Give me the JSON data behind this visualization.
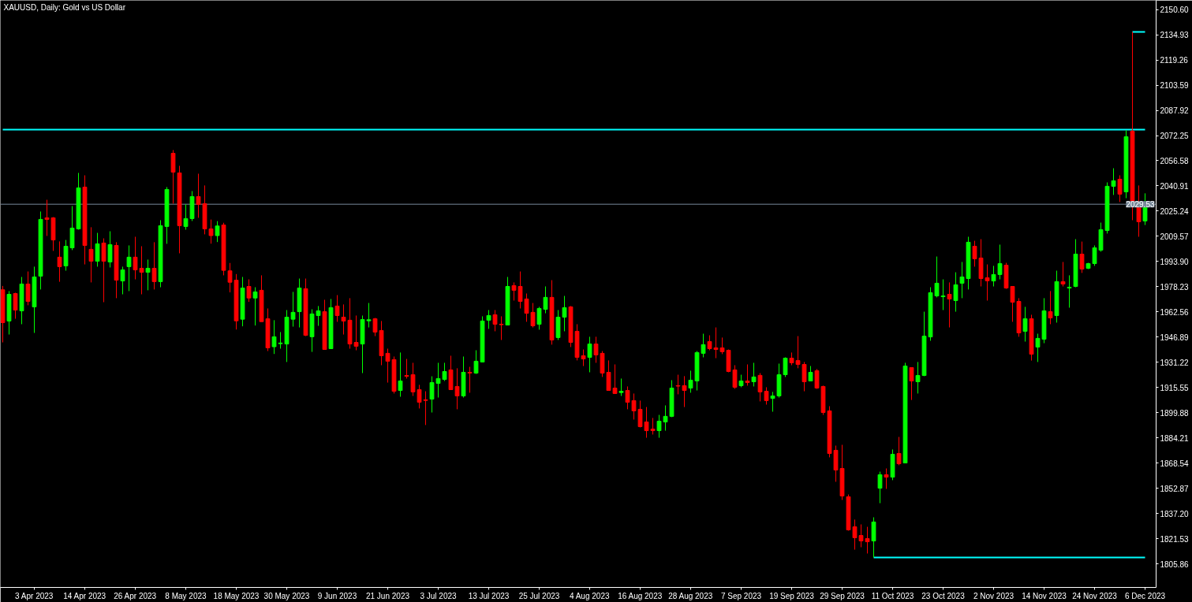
{
  "chart_data": {
    "type": "candlestick",
    "title": "XAUUSD, Daily:  Gold vs US Dollar",
    "categories": [
      null,
      null,
      null,
      null,
      null,
      "3 Apr 2023",
      null,
      null,
      null,
      null,
      null,
      null,
      null,
      "14 Apr 2023",
      null,
      null,
      null,
      null,
      null,
      null,
      null,
      "26 Apr 2023",
      null,
      null,
      null,
      null,
      null,
      null,
      null,
      "8 May 2023",
      null,
      null,
      null,
      null,
      null,
      null,
      null,
      "18 May 2023",
      null,
      null,
      null,
      null,
      null,
      null,
      null,
      "30 May 2023",
      null,
      null,
      null,
      null,
      null,
      null,
      null,
      "9 Jun 2023",
      null,
      null,
      null,
      null,
      null,
      null,
      null,
      "21 Jun 2023",
      null,
      null,
      null,
      null,
      null,
      null,
      null,
      "3 Jul 2023",
      null,
      null,
      null,
      null,
      null,
      null,
      null,
      "13 Jul 2023",
      null,
      null,
      null,
      null,
      null,
      null,
      null,
      "25 Jul 2023",
      null,
      null,
      null,
      null,
      null,
      null,
      null,
      "4 Aug 2023",
      null,
      null,
      null,
      null,
      null,
      null,
      null,
      "16 Aug 2023",
      null,
      null,
      null,
      null,
      null,
      null,
      null,
      "28 Aug 2023",
      null,
      null,
      null,
      null,
      null,
      null,
      null,
      "7 Sep 2023",
      null,
      null,
      null,
      null,
      null,
      null,
      null,
      "19 Sep 2023",
      null,
      null,
      null,
      null,
      null,
      null,
      null,
      "29 Sep 2023",
      null,
      null,
      null,
      null,
      null,
      null,
      null,
      "11 Oct 2023",
      null,
      null,
      null,
      null,
      null,
      null,
      null,
      "23 Oct 2023",
      null,
      null,
      null,
      null,
      null,
      null,
      null,
      "2 Nov 2023",
      null,
      null,
      null,
      null,
      null,
      null,
      null,
      "14 Nov 2023",
      null,
      null,
      null,
      null,
      null,
      null,
      null,
      "24 Nov 2023",
      null,
      null,
      null,
      null,
      null,
      null,
      null,
      "6 Dec 2023"
    ],
    "ohlc": [
      [
        1976.3,
        1978.7,
        1943.6,
        1955.9
      ],
      [
        1956.9,
        1975.5,
        1948.5,
        1973.5
      ],
      [
        1974.0,
        1974.5,
        1958.3,
        1963.7
      ],
      [
        1963.2,
        1984.3,
        1954.9,
        1979.9
      ],
      [
        1979.9,
        1987.7,
        1966.7,
        1969.1
      ],
      [
        1965.7,
        1990.7,
        1949.5,
        1984.3
      ],
      [
        1984.8,
        2025.0,
        1976.5,
        2020.1
      ],
      [
        2021.1,
        2032.3,
        2009.8,
        2020.1
      ],
      [
        2021.1,
        2021.5,
        2000.5,
        2007.3
      ],
      [
        1996.6,
        2006.4,
        1981.3,
        1990.7
      ],
      [
        1991.2,
        2007.3,
        1988.2,
        2003.4
      ],
      [
        2002.4,
        2028.4,
        2001.0,
        2014.7
      ],
      [
        2014.2,
        2049.0,
        2013.7,
        2039.7
      ],
      [
        2040.2,
        2047.5,
        1992.1,
        2003.9
      ],
      [
        2001.5,
        2015.2,
        1980.9,
        1994.1
      ],
      [
        1994.1,
        2011.7,
        1990.7,
        2004.9
      ],
      [
        2005.4,
        2008.3,
        1968.6,
        1994.1
      ],
      [
        1993.6,
        2012.7,
        1990.2,
        2004.4
      ],
      [
        2003.9,
        2005.9,
        1971.1,
        1982.3
      ],
      [
        1981.8,
        1990.7,
        1973.5,
        1988.7
      ],
      [
        1990.7,
        2003.9,
        1975.5,
        1996.6
      ],
      [
        1996.6,
        2009.3,
        1982.8,
        1988.7
      ],
      [
        1989.7,
        2003.4,
        1973.5,
        1987.2
      ],
      [
        1987.2,
        1995.1,
        1976.0,
        1989.7
      ],
      [
        1989.7,
        2005.9,
        1976.5,
        1981.4
      ],
      [
        1981.4,
        2019.6,
        1977.9,
        2016.2
      ],
      [
        2015.7,
        2040.2,
        2004.9,
        2038.7
      ],
      [
        2061.2,
        2063.2,
        2029.9,
        2049.5
      ],
      [
        2049.0,
        2053.4,
        1999.0,
        2016.2
      ],
      [
        2015.7,
        2029.4,
        2013.7,
        2020.6
      ],
      [
        2020.6,
        2037.7,
        2019.1,
        2034.3
      ],
      [
        2034.3,
        2048.5,
        2021.1,
        2029.4
      ],
      [
        2029.9,
        2041.2,
        2010.8,
        2014.2
      ],
      [
        2014.2,
        2020.0,
        2005.0,
        2010.0
      ],
      [
        2010.0,
        2019.0,
        2006.0,
        2016.0
      ],
      [
        2016.6,
        2018.0,
        1985.3,
        1988.4
      ],
      [
        1988.1,
        1993.0,
        1974.7,
        1981.0
      ],
      [
        1982.3,
        1986.1,
        1951.6,
        1957.0
      ],
      [
        1958.0,
        1984.3,
        1953.6,
        1977.4
      ],
      [
        1978.4,
        1982.8,
        1968.8,
        1971.2
      ],
      [
        1971.2,
        1977.9,
        1954.1,
        1975.0
      ],
      [
        1976.0,
        1985.3,
        1956.5,
        1956.5
      ],
      [
        1958.3,
        1964.7,
        1938.2,
        1940.2
      ],
      [
        1940.9,
        1957.4,
        1936.4,
        1947.1
      ],
      [
        1942.8,
        1950.0,
        1939.7,
        1943.2
      ],
      [
        1942.6,
        1963.7,
        1931.4,
        1959.3
      ],
      [
        1958.0,
        1975.0,
        1953.4,
        1962.3
      ],
      [
        1962.7,
        1983.3,
        1952.9,
        1977.4
      ],
      [
        1977.0,
        1983.3,
        1947.5,
        1948.0
      ],
      [
        1947.1,
        1964.2,
        1937.7,
        1961.3
      ],
      [
        1960.3,
        1966.2,
        1953.9,
        1963.2
      ],
      [
        1962.7,
        1970.1,
        1939.2,
        1939.2
      ],
      [
        1939.7,
        1970.6,
        1939.7,
        1965.2
      ],
      [
        1966.2,
        1973.0,
        1956.4,
        1960.3
      ],
      [
        1959.3,
        1967.2,
        1948.5,
        1956.9
      ],
      [
        1957.4,
        1971.1,
        1939.7,
        1942.6
      ],
      [
        1943.6,
        1960.3,
        1938.7,
        1941.2
      ],
      [
        1942.6,
        1960.3,
        1924.5,
        1957.8
      ],
      [
        1957.0,
        1968.1,
        1952.9,
        1957.7
      ],
      [
        1958.3,
        1958.8,
        1947.5,
        1950.0
      ],
      [
        1951.0,
        1956.9,
        1929.4,
        1935.3
      ],
      [
        1936.8,
        1939.7,
        1918.6,
        1931.9
      ],
      [
        1932.9,
        1934.8,
        1911.8,
        1913.2
      ],
      [
        1913.7,
        1937.3,
        1909.8,
        1919.6
      ],
      [
        1923.0,
        1933.3,
        1921.1,
        1922.5
      ],
      [
        1923.5,
        1930.9,
        1910.3,
        1912.8
      ],
      [
        1914.2,
        1917.2,
        1902.5,
        1906.4
      ],
      [
        1907.9,
        1913.2,
        1892.2,
        1907.5
      ],
      [
        1908.3,
        1922.5,
        1900.0,
        1918.6
      ],
      [
        1918.1,
        1930.9,
        1909.3,
        1921.1
      ],
      [
        1920.6,
        1930.9,
        1919.6,
        1925.5
      ],
      [
        1926.5,
        1935.3,
        1914.2,
        1914.2
      ],
      [
        1916.2,
        1927.5,
        1902.0,
        1910.3
      ],
      [
        1910.3,
        1934.8,
        1909.3,
        1925.0
      ],
      [
        1925.0,
        1928.4,
        1912.3,
        1924.5
      ],
      [
        1924.5,
        1938.7,
        1924.0,
        1931.9
      ],
      [
        1931.4,
        1959.8,
        1931.4,
        1956.9
      ],
      [
        1957.4,
        1963.7,
        1952.0,
        1960.3
      ],
      [
        1960.8,
        1963.7,
        1950.5,
        1954.9
      ],
      [
        1954.9,
        1959.8,
        1945.1,
        1954.6
      ],
      [
        1954.4,
        1984.3,
        1954.4,
        1978.4
      ],
      [
        1978.9,
        1980.9,
        1969.6,
        1976.0
      ],
      [
        1978.4,
        1987.7,
        1964.7,
        1969.1
      ],
      [
        1970.6,
        1974.0,
        1956.4,
        1961.7
      ],
      [
        1962.3,
        1968.1,
        1952.9,
        1953.9
      ],
      [
        1954.9,
        1965.7,
        1951.5,
        1964.7
      ],
      [
        1964.2,
        1978.4,
        1961.7,
        1971.6
      ],
      [
        1971.6,
        1982.3,
        1942.2,
        1945.1
      ],
      [
        1946.6,
        1963.7,
        1945.1,
        1959.3
      ],
      [
        1959.3,
        1972.5,
        1950.5,
        1965.2
      ],
      [
        1965.7,
        1966.2,
        1940.7,
        1943.6
      ],
      [
        1950.5,
        1954.9,
        1932.4,
        1934.3
      ],
      [
        1935.3,
        1939.2,
        1928.9,
        1933.3
      ],
      [
        1934.3,
        1947.1,
        1925.0,
        1942.6
      ],
      [
        1942.6,
        1947.1,
        1930.9,
        1935.8
      ],
      [
        1936.8,
        1938.2,
        1922.1,
        1924.5
      ],
      [
        1925.0,
        1932.4,
        1913.7,
        1913.7
      ],
      [
        1915.2,
        1929.9,
        1911.8,
        1911.8
      ],
      [
        1912.4,
        1921.1,
        1910.3,
        1913.2
      ],
      [
        1913.7,
        1916.2,
        1902.0,
        1906.4
      ],
      [
        1907.4,
        1911.8,
        1895.6,
        1901.0
      ],
      [
        1902.0,
        1907.4,
        1890.7,
        1891.2
      ],
      [
        1894.1,
        1903.4,
        1884.3,
        1888.7
      ],
      [
        1889.7,
        1896.6,
        1886.3,
        1888.7
      ],
      [
        1888.7,
        1898.5,
        1884.3,
        1894.6
      ],
      [
        1894.1,
        1904.4,
        1888.7,
        1897.6
      ],
      [
        1897.6,
        1920.1,
        1897.1,
        1915.2
      ],
      [
        1916.7,
        1923.5,
        1911.3,
        1916.4
      ],
      [
        1916.7,
        1922.6,
        1903.4,
        1913.7
      ],
      [
        1915.2,
        1926.0,
        1912.3,
        1920.1
      ],
      [
        1919.6,
        1938.2,
        1913.7,
        1937.3
      ],
      [
        1936.8,
        1949.0,
        1934.3,
        1942.2
      ],
      [
        1944.1,
        1948.0,
        1938.7,
        1939.7
      ],
      [
        1940.2,
        1952.9,
        1933.8,
        1939.2
      ],
      [
        1940.2,
        1946.6,
        1936.3,
        1937.8
      ],
      [
        1938.7,
        1939.2,
        1925.0,
        1925.5
      ],
      [
        1926.5,
        1929.4,
        1914.7,
        1915.7
      ],
      [
        1916.7,
        1923.5,
        1915.7,
        1919.6
      ],
      [
        1919.6,
        1929.9,
        1916.7,
        1918.6
      ],
      [
        1919.1,
        1930.9,
        1916.2,
        1922.1
      ],
      [
        1923.1,
        1924.5,
        1906.9,
        1912.8
      ],
      [
        1913.2,
        1915.7,
        1904.9,
        1907.4
      ],
      [
        1908.8,
        1912.8,
        1900.5,
        1910.3
      ],
      [
        1910.3,
        1930.4,
        1909.3,
        1923.5
      ],
      [
        1923.5,
        1934.3,
        1922.1,
        1933.8
      ],
      [
        1933.8,
        1937.3,
        1929.4,
        1930.9
      ],
      [
        1932.3,
        1947.5,
        1927.5,
        1929.9
      ],
      [
        1929.9,
        1931.4,
        1913.2,
        1919.1
      ],
      [
        1919.6,
        1928.9,
        1919.6,
        1925.0
      ],
      [
        1926.0,
        1927.0,
        1914.7,
        1915.2
      ],
      [
        1916.2,
        1916.7,
        1898.5,
        1900.0
      ],
      [
        1901.0,
        1903.9,
        1872.1,
        1874.5
      ],
      [
        1876.5,
        1879.4,
        1856.9,
        1864.2
      ],
      [
        1865.2,
        1879.9,
        1845.6,
        1848.1
      ],
      [
        1847.6,
        1849.0,
        1826.5,
        1827.0
      ],
      [
        1828.9,
        1833.4,
        1814.7,
        1822.1
      ],
      [
        1823.5,
        1830.4,
        1816.2,
        1820.1
      ],
      [
        1821.6,
        1828.9,
        1812.3,
        1819.6
      ],
      [
        1820.1,
        1834.8,
        1809.8,
        1831.9
      ],
      [
        1852.9,
        1863.2,
        1843.6,
        1861.3
      ],
      [
        1861.3,
        1865.2,
        1852.5,
        1859.8
      ],
      [
        1859.8,
        1877.0,
        1857.9,
        1874.0
      ],
      [
        1874.5,
        1884.8,
        1867.2,
        1868.1
      ],
      [
        1868.6,
        1930.9,
        1868.6,
        1928.9
      ],
      [
        1927.9,
        1927.9,
        1907.8,
        1919.6
      ],
      [
        1919.1,
        1931.4,
        1911.8,
        1923.0
      ],
      [
        1923.0,
        1962.7,
        1922.6,
        1947.5
      ],
      [
        1947.0,
        1977.9,
        1944.6,
        1974.5
      ],
      [
        1972.5,
        1997.0,
        1971.6,
        1980.4
      ],
      [
        1972.0,
        1982.8,
        1963.7,
        1972.5
      ],
      [
        1973.5,
        1980.9,
        1952.9,
        1970.6
      ],
      [
        1969.6,
        1987.2,
        1962.7,
        1979.4
      ],
      [
        1980.4,
        1993.6,
        1971.1,
        1984.3
      ],
      [
        1983.3,
        2009.3,
        1976.5,
        2005.9
      ],
      [
        2003.4,
        2006.8,
        1990.7,
        1995.6
      ],
      [
        1996.1,
        2007.8,
        1978.4,
        1983.3
      ],
      [
        1983.8,
        1992.1,
        1969.6,
        1981.9
      ],
      [
        1981.8,
        1991.2,
        1978.4,
        1985.8
      ],
      [
        1985.8,
        2004.4,
        1982.8,
        1992.6
      ],
      [
        1991.6,
        1993.1,
        1976.9,
        1977.4
      ],
      [
        1978.4,
        1978.4,
        1956.4,
        1968.6
      ],
      [
        1969.1,
        1971.1,
        1947.1,
        1949.5
      ],
      [
        1950.5,
        1965.7,
        1944.1,
        1958.3
      ],
      [
        1958.3,
        1960.8,
        1932.3,
        1936.3
      ],
      [
        1940.7,
        1949.0,
        1931.4,
        1946.1
      ],
      [
        1945.6,
        1971.1,
        1943.1,
        1963.2
      ],
      [
        1962.7,
        1975.5,
        1954.9,
        1958.8
      ],
      [
        1960.3,
        1988.2,
        1955.9,
        1981.4
      ],
      [
        1981.4,
        1993.6,
        1978.4,
        1979.9
      ],
      [
        1977.4,
        1985.3,
        1965.2,
        1977.9
      ],
      [
        1978.4,
        2007.8,
        1977.9,
        1998.5
      ],
      [
        1998.5,
        2006.3,
        1986.8,
        1989.2
      ],
      [
        1989.7,
        1993.1,
        1989.2,
        1992.6
      ],
      [
        1992.6,
        2003.9,
        1991.2,
        2002.4
      ],
      [
        2001.0,
        2018.1,
        2000.0,
        2013.7
      ],
      [
        2013.2,
        2043.1,
        2011.3,
        2040.7
      ],
      [
        2040.7,
        2051.9,
        2035.3,
        2044.1
      ],
      [
        2045.1,
        2047.5,
        2030.9,
        2035.8
      ],
      [
        2037.2,
        2075.5,
        2033.3,
        2071.5
      ],
      [
        2074.9,
        2136.7,
        2019.6,
        2028.9
      ],
      [
        2029.9,
        2041.2,
        2009.3,
        2018.6
      ],
      [
        2019.1,
        2036.3,
        2016.6,
        2029.9
      ]
    ],
    "colors": [
      "#ff0000",
      "#00ff00",
      "#ff0000",
      "#00ff00",
      "#ff0000",
      "#00ff00",
      "#00ff00",
      "#ff0000",
      "#ff0000",
      "#ff0000",
      "#00ff00",
      "#00ff00",
      "#00ff00",
      "#ff0000",
      "#ff0000",
      "#00ff00",
      "#ff0000",
      "#00ff00",
      "#ff0000",
      "#00ff00",
      "#00ff00",
      "#ff0000",
      "#ff0000",
      "#00ff00",
      "#ff0000",
      "#00ff00",
      "#00ff00",
      "#ff0000",
      "#ff0000",
      "#00ff00",
      "#00ff00",
      "#ff0000",
      "#ff0000",
      "#ff0000",
      "#00ff00",
      "#ff0000",
      "#ff0000",
      "#ff0000",
      "#00ff00",
      "#ff0000",
      "#00ff00",
      "#ff0000",
      "#ff0000",
      "#00ff00",
      "#00ff00",
      "#00ff00",
      "#00ff00",
      "#00ff00",
      "#ff0000",
      "#00ff00",
      "#00ff00",
      "#ff0000",
      "#00ff00",
      "#ff0000",
      "#ff0000",
      "#ff0000",
      "#ff0000",
      "#00ff00",
      "#00ff00",
      "#ff0000",
      "#ff0000",
      "#ff0000",
      "#ff0000",
      "#00ff00",
      "#ff0000",
      "#ff0000",
      "#ff0000",
      "#ff0000",
      "#00ff00",
      "#00ff00",
      "#00ff00",
      "#ff0000",
      "#ff0000",
      "#00ff00",
      "#ff0000",
      "#00ff00",
      "#00ff00",
      "#00ff00",
      "#ff0000",
      "#ff0000",
      "#00ff00",
      "#ff0000",
      "#ff0000",
      "#ff0000",
      "#ff0000",
      "#00ff00",
      "#00ff00",
      "#ff0000",
      "#00ff00",
      "#00ff00",
      "#ff0000",
      "#ff0000",
      "#ff0000",
      "#00ff00",
      "#ff0000",
      "#ff0000",
      "#ff0000",
      "#ff0000",
      "#00ff00",
      "#ff0000",
      "#ff0000",
      "#ff0000",
      "#ff0000",
      "#ff0000",
      "#00ff00",
      "#00ff00",
      "#00ff00",
      "#ff0000",
      "#ff0000",
      "#00ff00",
      "#00ff00",
      "#00ff00",
      "#ff0000",
      "#ff0000",
      "#ff0000",
      "#ff0000",
      "#ff0000",
      "#00ff00",
      "#ff0000",
      "#00ff00",
      "#ff0000",
      "#ff0000",
      "#00ff00",
      "#00ff00",
      "#00ff00",
      "#ff0000",
      "#ff0000",
      "#ff0000",
      "#00ff00",
      "#ff0000",
      "#ff0000",
      "#ff0000",
      "#ff0000",
      "#ff0000",
      "#ff0000",
      "#ff0000",
      "#ff0000",
      "#ff0000",
      "#00ff00",
      "#00ff00",
      "#ff0000",
      "#00ff00",
      "#ff0000",
      "#00ff00",
      "#ff0000",
      "#00ff00",
      "#00ff00",
      "#00ff00",
      "#00ff00",
      "#00ff00",
      "#ff0000",
      "#00ff00",
      "#00ff00",
      "#00ff00",
      "#ff0000",
      "#ff0000",
      "#ff0000",
      "#00ff00",
      "#00ff00",
      "#ff0000",
      "#ff0000",
      "#ff0000",
      "#00ff00",
      "#ff0000",
      "#00ff00",
      "#00ff00",
      "#ff0000",
      "#00ff00",
      "#ff0000",
      "#00ff00",
      "#00ff00",
      "#ff0000",
      "#00ff00",
      "#00ff00",
      "#00ff00",
      "#00ff00",
      "#00ff00",
      "#ff0000",
      "#00ff00",
      "#ff0000",
      "#ff0000",
      "#00ff00"
    ],
    "series": [
      {
        "type": "line",
        "values": [
          2075.9,
          2075.9,
          2075.9,
          2075.9,
          2075.9,
          2075.9,
          2075.9,
          2075.9,
          2075.9,
          2075.9,
          2075.9,
          2075.9,
          2075.9,
          2075.9,
          2075.9,
          2075.9,
          2075.9,
          2075.9,
          2075.9,
          2075.9,
          2075.9,
          2075.9,
          2075.9,
          2075.9,
          2075.9,
          2075.9,
          2075.9,
          2075.9,
          2075.9,
          2075.9,
          2075.9,
          2075.9,
          2075.9,
          2075.9,
          2075.9,
          2075.9,
          2075.9,
          2075.9,
          2075.9,
          2075.9,
          2075.9,
          2075.9,
          2075.9,
          2075.9,
          2075.9,
          2075.9,
          2075.9,
          2075.9,
          2075.9,
          2075.9,
          2075.9,
          2075.9,
          2075.9,
          2075.9,
          2075.9,
          2075.9,
          2075.9,
          2075.9,
          2075.9,
          2075.9,
          2075.9,
          2075.9,
          2075.9,
          2075.9,
          2075.9,
          2075.9,
          2075.9,
          2075.9,
          2075.9,
          2075.9,
          2075.9,
          2075.9,
          2075.9,
          2075.9,
          2075.9,
          2075.9,
          2075.9,
          2075.9,
          2075.9,
          2075.9,
          2075.9,
          2075.9,
          2075.9,
          2075.9,
          2075.9,
          2075.9,
          2075.9,
          2075.9,
          2075.9,
          2075.9,
          2075.9,
          2075.9,
          2075.9,
          2075.9,
          2075.9,
          2075.9,
          2075.9,
          2075.9,
          2075.9,
          2075.9,
          2075.9,
          2075.9,
          2075.9,
          2075.9,
          2075.9,
          2075.9,
          2075.9,
          2075.9,
          2075.9,
          2075.9,
          2075.9,
          2075.9,
          2075.9,
          2075.9,
          2075.9,
          2075.9,
          2075.9,
          2075.9,
          2075.9,
          2075.9,
          2075.9,
          2075.9,
          2075.9,
          2075.9,
          2075.9,
          2075.9,
          2075.9,
          2075.9,
          2075.9,
          2075.9,
          2075.9,
          2075.9,
          2075.9,
          2075.9,
          2075.9,
          2075.9,
          2075.9,
          2075.9,
          2075.9,
          2075.9,
          2075.9,
          2075.9,
          2075.9,
          2075.9,
          2075.9,
          2075.9,
          2075.9,
          2075.9,
          2075.9,
          2075.9,
          2075.9,
          2075.9,
          2075.9,
          2075.9,
          2075.9,
          2075.9,
          2075.9,
          2075.9,
          2075.9,
          2075.9,
          2075.9,
          2075.9,
          2075.9,
          2075.9,
          2075.9,
          2075.9,
          2075.9,
          2075.9,
          2075.9,
          2075.9,
          2075.9,
          2075.9,
          2075.9,
          2075.9,
          2075.9,
          2075.9,
          2075.9,
          2075.9,
          2075.9,
          2075.9,
          2075.9,
          2075.9
        ],
        "color": "#00ffff"
      },
      {
        "type": "line",
        "values": [
          null,
          null,
          null,
          null,
          null,
          null,
          null,
          null,
          null,
          null,
          null,
          null,
          null,
          null,
          null,
          null,
          null,
          null,
          null,
          null,
          null,
          null,
          null,
          null,
          null,
          null,
          null,
          null,
          null,
          null,
          null,
          null,
          null,
          null,
          null,
          null,
          null,
          null,
          null,
          null,
          null,
          null,
          null,
          null,
          null,
          null,
          null,
          null,
          null,
          null,
          null,
          null,
          null,
          null,
          null,
          null,
          null,
          null,
          null,
          null,
          null,
          null,
          null,
          null,
          null,
          null,
          null,
          null,
          null,
          null,
          null,
          null,
          null,
          null,
          null,
          null,
          null,
          null,
          null,
          null,
          null,
          null,
          null,
          null,
          null,
          null,
          null,
          null,
          null,
          null,
          null,
          null,
          null,
          null,
          null,
          null,
          null,
          null,
          null,
          null,
          null,
          null,
          null,
          null,
          null,
          null,
          null,
          null,
          null,
          null,
          null,
          null,
          null,
          null,
          null,
          null,
          null,
          null,
          null,
          null,
          null,
          null,
          null,
          null,
          null,
          null,
          null,
          null,
          null,
          null,
          null,
          null,
          null,
          null,
          null,
          null,
          null,
          null,
          1809.8,
          1809.8,
          1809.8,
          1809.8,
          1809.8,
          1809.8,
          1809.8,
          1809.8,
          1809.8,
          1809.8,
          1809.8,
          1809.8,
          1809.8,
          1809.8,
          1809.8,
          1809.8,
          1809.8,
          1809.8,
          1809.8,
          1809.8,
          1809.8,
          1809.8,
          1809.8,
          1809.8,
          1809.8,
          1809.8,
          1809.8,
          1809.8,
          1809.8,
          1809.8,
          1809.8,
          1809.8,
          1809.8,
          1809.8,
          1809.8,
          1809.8,
          1809.8,
          1809.8,
          1809.8,
          1809.8,
          1809.8,
          1809.8,
          1809.8,
          1809.8
        ],
        "color": "#00ffff"
      },
      {
        "type": "line",
        "values": [
          null,
          null,
          null,
          null,
          null,
          null,
          null,
          null,
          null,
          null,
          null,
          null,
          null,
          null,
          null,
          null,
          null,
          null,
          null,
          null,
          null,
          null,
          null,
          null,
          null,
          null,
          null,
          null,
          null,
          null,
          null,
          null,
          null,
          null,
          null,
          null,
          null,
          null,
          null,
          null,
          null,
          null,
          null,
          null,
          null,
          null,
          null,
          null,
          null,
          null,
          null,
          null,
          null,
          null,
          null,
          null,
          null,
          null,
          null,
          null,
          null,
          null,
          null,
          null,
          null,
          null,
          null,
          null,
          null,
          null,
          null,
          null,
          null,
          null,
          null,
          null,
          null,
          null,
          null,
          null,
          null,
          null,
          null,
          null,
          null,
          null,
          null,
          null,
          null,
          null,
          null,
          null,
          null,
          null,
          null,
          null,
          null,
          null,
          null,
          null,
          null,
          null,
          null,
          null,
          null,
          null,
          null,
          null,
          null,
          null,
          null,
          null,
          null,
          null,
          null,
          null,
          null,
          null,
          null,
          null,
          null,
          null,
          null,
          null,
          null,
          null,
          null,
          null,
          null,
          null,
          null,
          null,
          null,
          null,
          null,
          null,
          null,
          null,
          null,
          null,
          null,
          null,
          null,
          null,
          null,
          null,
          null,
          null,
          null,
          null,
          null,
          null,
          null,
          null,
          null,
          null,
          null,
          null,
          null,
          null,
          null,
          null,
          null,
          null,
          null,
          null,
          null,
          null,
          null,
          null,
          null,
          null,
          null,
          null,
          null,
          null,
          null,
          null,
          null,
          2136.7,
          2136.7,
          2136.7
        ],
        "color": "#00ffff"
      }
    ],
    "ref_lines": [
      {
        "axis": "y",
        "value": 2029.53,
        "label": "2029.53",
        "color": "#778899"
      }
    ],
    "ylim": [
      1791.2,
      2156.3
    ],
    "yticks": [
      {
        "value": 2150.6,
        "label": "2150.60"
      },
      2134.93,
      2119.26,
      2103.59,
      2087.92,
      2072.25,
      2056.58,
      2040.91,
      2025.24,
      2009.57,
      {
        "value": 1993.9,
        "label": "1993.90"
      },
      1978.23,
      1962.56,
      1946.89,
      1931.22,
      1915.55,
      1899.88,
      1884.21,
      1868.54,
      1852.87,
      {
        "value": 1837.2,
        "label": "1837.20"
      },
      1821.53,
      1805.86
    ]
  }
}
